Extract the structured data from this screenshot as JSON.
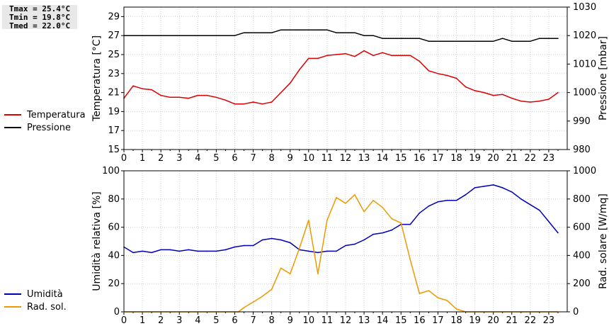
{
  "stats": [
    "Tmax = 25.4°C",
    "Tmin = 19.8°C",
    "Tmed = 22.0°C"
  ],
  "chart_data": [
    {
      "type": "line",
      "xlim": [
        0,
        24
      ],
      "x_ticks": [
        "0",
        "1",
        "2",
        "3",
        "4",
        "5",
        "6",
        "7",
        "8",
        "9",
        "10",
        "11",
        "12",
        "13",
        "14",
        "15",
        "16",
        "17",
        "18",
        "19",
        "20",
        "21",
        "22",
        "23"
      ],
      "ylabel": "Temperatura [°C]",
      "ylim": [
        15,
        30
      ],
      "y_ticks": [
        "15",
        "17",
        "19",
        "21",
        "23",
        "25",
        "27",
        "29"
      ],
      "y2label": "Pressione [mbar]",
      "y2lim": [
        980,
        1030
      ],
      "y2_ticks": [
        "980",
        "990",
        "1000",
        "1010",
        "1020",
        "1030"
      ],
      "grid": true,
      "legend_position": "left",
      "series": [
        {
          "name": "Temperatura",
          "axis": "left",
          "color": "#dd0000",
          "x": [
            0,
            0.5,
            1,
            1.5,
            2,
            2.5,
            3,
            3.5,
            4,
            4.5,
            5,
            5.5,
            6,
            6.5,
            7,
            7.5,
            8,
            8.5,
            9,
            9.5,
            10,
            10.5,
            11,
            11.5,
            12,
            12.5,
            13,
            13.5,
            14,
            14.5,
            15,
            15.5,
            16,
            16.5,
            17,
            17.5,
            18,
            18.5,
            19,
            19.5,
            20,
            20.5,
            21,
            21.5,
            22,
            22.5,
            23,
            23.5
          ],
          "values": [
            20.4,
            21.7,
            21.4,
            21.3,
            20.7,
            20.5,
            20.5,
            20.4,
            20.7,
            20.7,
            20.5,
            20.2,
            19.8,
            19.8,
            20.0,
            19.8,
            20.0,
            21.0,
            22.0,
            23.4,
            24.6,
            24.6,
            24.9,
            25.0,
            25.1,
            24.8,
            25.4,
            24.9,
            25.2,
            24.9,
            24.9,
            24.9,
            24.3,
            23.3,
            23.0,
            22.8,
            22.5,
            21.6,
            21.2,
            21.0,
            20.7,
            20.8,
            20.4,
            20.1,
            20.0,
            20.1,
            20.3,
            21.0
          ]
        },
        {
          "name": "Pressione",
          "axis": "right",
          "color": "#000000",
          "x": [
            0,
            1,
            2,
            3,
            4,
            5,
            6,
            6.5,
            7,
            7.5,
            8,
            8.5,
            9,
            9.5,
            10,
            10.5,
            11,
            11.5,
            12,
            12.5,
            13,
            13.5,
            14,
            15,
            15.5,
            16,
            16.5,
            17,
            18,
            19,
            20,
            20.5,
            21,
            22,
            22.5,
            23,
            23.5
          ],
          "values": [
            1020,
            1020,
            1020,
            1020,
            1020,
            1020,
            1020,
            1021,
            1021,
            1021,
            1021,
            1022,
            1022,
            1022,
            1022,
            1022,
            1022,
            1021,
            1021,
            1021,
            1020,
            1020,
            1019,
            1019,
            1019,
            1019,
            1018,
            1018,
            1018,
            1018,
            1018,
            1019,
            1018,
            1018,
            1019,
            1019,
            1019
          ]
        }
      ]
    },
    {
      "type": "line",
      "xlim": [
        0,
        24
      ],
      "x_ticks": [
        "0",
        "1",
        "2",
        "3",
        "4",
        "5",
        "6",
        "7",
        "8",
        "9",
        "10",
        "11",
        "12",
        "13",
        "14",
        "15",
        "16",
        "17",
        "18",
        "19",
        "20",
        "21",
        "22",
        "23"
      ],
      "ylabel": "Umidità relativa [%]",
      "ylim": [
        0,
        100
      ],
      "y_ticks": [
        "0",
        "20",
        "40",
        "60",
        "80",
        "100"
      ],
      "y2label": "Rad. solare [W/mq]",
      "y2lim": [
        0,
        1000
      ],
      "y2_ticks": [
        "0",
        "200",
        "400",
        "600",
        "800",
        "1000"
      ],
      "grid": true,
      "legend_position": "left",
      "series": [
        {
          "name": "Umidità",
          "axis": "left",
          "color": "#0000bb",
          "x": [
            0,
            0.5,
            1,
            1.5,
            2,
            2.5,
            3,
            3.5,
            4,
            4.5,
            5,
            5.5,
            6,
            6.5,
            7,
            7.5,
            8,
            8.5,
            9,
            9.5,
            10,
            10.5,
            11,
            11.5,
            12,
            12.5,
            13,
            13.5,
            14,
            14.5,
            15,
            15.5,
            16,
            16.5,
            17,
            17.5,
            18,
            18.5,
            19,
            19.5,
            20,
            20.5,
            21,
            21.5,
            22,
            22.5,
            23,
            23.5
          ],
          "values": [
            46,
            42,
            43,
            42,
            44,
            44,
            43,
            44,
            43,
            43,
            43,
            44,
            46,
            47,
            47,
            51,
            52,
            51,
            49,
            44,
            43,
            42,
            43,
            43,
            47,
            48,
            51,
            55,
            56,
            58,
            62,
            62,
            70,
            75,
            78,
            79,
            79,
            83,
            88,
            89,
            90,
            88,
            85,
            80,
            76,
            72,
            64,
            56
          ]
        },
        {
          "name": "Rad. sol.",
          "axis": "right",
          "color": "#ee9900",
          "x": [
            0,
            1,
            2,
            3,
            4,
            5,
            6,
            6.2,
            6.5,
            7,
            7.5,
            8,
            8.5,
            9,
            9.5,
            10,
            10.5,
            11,
            11.5,
            12,
            12.5,
            13,
            13.5,
            14,
            14.5,
            15,
            15.5,
            16,
            16.5,
            17,
            17.5,
            18,
            18.5,
            19,
            20,
            21,
            22,
            23,
            23.5
          ],
          "values": [
            0,
            0,
            0,
            0,
            0,
            0,
            0,
            0,
            30,
            70,
            110,
            160,
            310,
            270,
            450,
            650,
            270,
            650,
            810,
            770,
            830,
            710,
            790,
            740,
            660,
            630,
            370,
            130,
            150,
            100,
            80,
            20,
            0,
            0,
            0,
            0,
            0,
            0,
            0
          ]
        }
      ]
    }
  ]
}
